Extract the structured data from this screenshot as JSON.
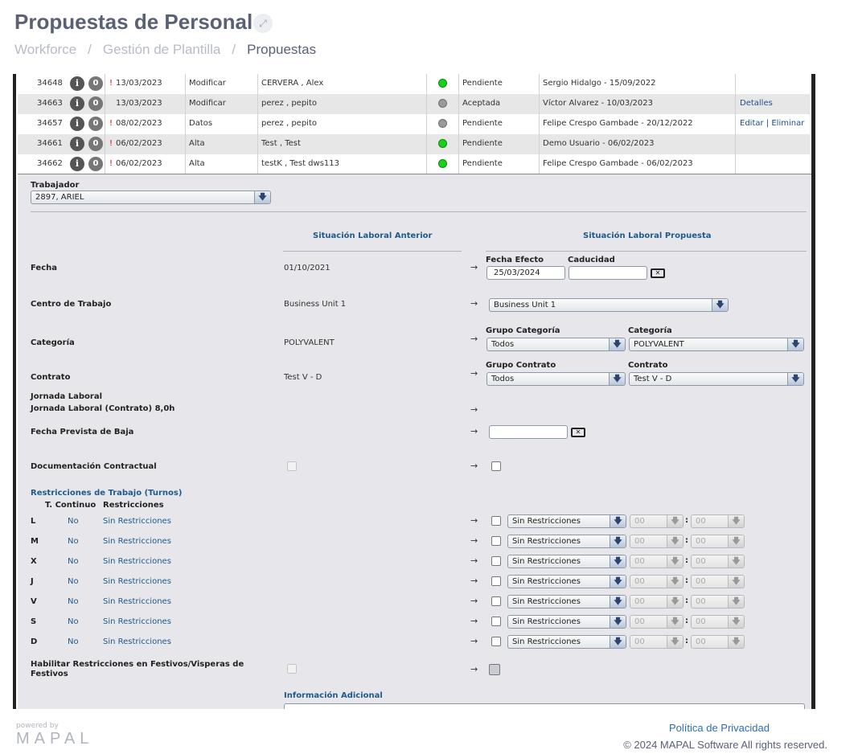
{
  "page": {
    "title": "Propuestas de Personal"
  },
  "breadcrumb": {
    "items": [
      "Workforce",
      "Gestión de Plantilla",
      "Propuestas"
    ],
    "separator": "/"
  },
  "proposals": [
    {
      "id": "34648",
      "warn": "!",
      "date": "13/03/2023",
      "type": "Modificar",
      "worker": "CERVERA , Alex",
      "dot": "green",
      "status": "Pendiente",
      "created": "Sergio Hidalgo - 15/09/2022",
      "actions": []
    },
    {
      "id": "34663",
      "warn": "",
      "date": "13/03/2023",
      "type": "Modificar",
      "worker": "perez , pepito",
      "dot": "grey",
      "status": "Aceptada",
      "created": "Víctor Alvarez - 10/03/2023",
      "actions": [
        "Detalles"
      ]
    },
    {
      "id": "34657",
      "warn": "!",
      "date": "08/02/2023",
      "type": "Datos",
      "worker": "perez , pepito",
      "dot": "grey",
      "status": "Pendiente",
      "created": "Felipe Crespo Gambade - 20/12/2022",
      "actions": [
        "Editar",
        "Eliminar"
      ]
    },
    {
      "id": "34661",
      "warn": "!",
      "date": "06/02/2023",
      "type": "Alta",
      "worker": "Test , Test",
      "dot": "green",
      "status": "Pendiente",
      "created": "Demo Usuario - 06/02/2023",
      "actions": []
    },
    {
      "id": "34662",
      "warn": "!",
      "date": "06/02/2023",
      "type": "Alta",
      "worker": "testK , Test dws113",
      "dot": "green",
      "status": "Pendiente",
      "created": "Felipe Crespo Gambade - 06/02/2023",
      "actions": []
    }
  ],
  "action_separator": "|",
  "icons": {
    "info": "info-icon",
    "clip": "paperclip-icon",
    "clear": "clear-icon",
    "arrow": "→",
    "dropdown": "🡇"
  },
  "form": {
    "worker_label": "Trabajador",
    "worker_value": "2897, ARIEL",
    "col_previous": "Situación Laboral Anterior",
    "col_proposed": "Situación Laboral Propuesta",
    "fecha": {
      "label": "Fecha",
      "previous": "01/10/2021",
      "efecto_label": "Fecha Efecto",
      "efecto_value": "25/03/2024",
      "caducidad_label": "Caducidad",
      "caducidad_value": ""
    },
    "centro": {
      "label": "Centro de Trabajo",
      "previous": "Business Unit 1",
      "proposed": "Business Unit 1"
    },
    "categoria": {
      "label": "Categoría",
      "previous": "POLYVALENT",
      "grupo_label": "Grupo Categoría",
      "grupo_value": "Todos",
      "cat_label": "Categoría",
      "cat_value": "POLYVALENT"
    },
    "contrato": {
      "label": "Contrato",
      "previous": "Test V - D",
      "grupo_label": "Grupo Contrato",
      "grupo_value": "Todos",
      "contrato_label": "Contrato",
      "contrato_value": "Test V - D"
    },
    "jornada": {
      "label": "Jornada Laboral",
      "sub": "Jornada Laboral (Contrato) 8,0h"
    },
    "baja": {
      "label": "Fecha Prevista de Baja",
      "value": ""
    },
    "documentacion": {
      "label": "Documentación Contractual"
    },
    "restricciones": {
      "title": "Restricciones de Trabajo (Turnos)",
      "col_continuo": "T. Continuo",
      "col_restr": "Restricciones",
      "days": [
        {
          "day": "L",
          "continuo": "No",
          "restr": "Sin Restricciones",
          "sel": "Sin Restricciones",
          "h": "00",
          "m": "00"
        },
        {
          "day": "M",
          "continuo": "No",
          "restr": "Sin Restricciones",
          "sel": "Sin Restricciones",
          "h": "00",
          "m": "00"
        },
        {
          "day": "X",
          "continuo": "No",
          "restr": "Sin Restricciones",
          "sel": "Sin Restricciones",
          "h": "00",
          "m": "00"
        },
        {
          "day": "J",
          "continuo": "No",
          "restr": "Sin Restricciones",
          "sel": "Sin Restricciones",
          "h": "00",
          "m": "00"
        },
        {
          "day": "V",
          "continuo": "No",
          "restr": "Sin Restricciones",
          "sel": "Sin Restricciones",
          "h": "00",
          "m": "00"
        },
        {
          "day": "S",
          "continuo": "No",
          "restr": "Sin Restricciones",
          "sel": "Sin Restricciones",
          "h": "00",
          "m": "00"
        },
        {
          "day": "D",
          "continuo": "No",
          "restr": "Sin Restricciones",
          "sel": "Sin Restricciones",
          "h": "00",
          "m": "00"
        }
      ]
    },
    "festivos": {
      "label_line1": "Habilitar Restricciones en Festivos/Visperas de",
      "label_line2": "Festivos"
    },
    "info_adicional": "Información Adicional"
  },
  "footer": {
    "powered": "powered by",
    "logo": "MAPAL",
    "privacy": "Política de Privacidad",
    "copyright": "© 2024 MAPAL Software All rights reserved."
  }
}
